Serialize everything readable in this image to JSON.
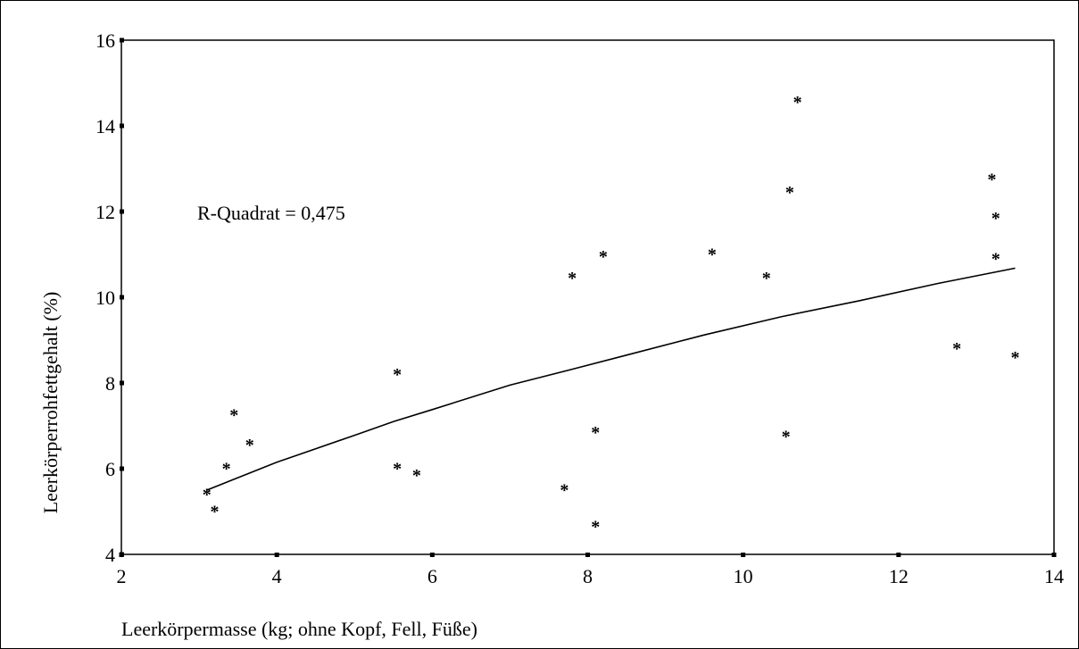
{
  "chart_data": {
    "type": "scatter",
    "xlabel": "Leerkörpermasse (kg; ohne Kopf, Fell, Füße)",
    "ylabel": "Leerkörperrohfettgehalt (%)",
    "xlim": [
      2,
      14
    ],
    "ylim": [
      4,
      16
    ],
    "xticks": [
      "2",
      "4",
      "6",
      "8",
      "10",
      "12",
      "14"
    ],
    "yticks": [
      "4",
      "6",
      "8",
      "10",
      "12",
      "14",
      "16"
    ],
    "annotation": "R-Quadrat = 0,475",
    "marker": "*",
    "grid": false,
    "points": [
      {
        "x": 3.1,
        "y": 5.45
      },
      {
        "x": 3.2,
        "y": 5.05
      },
      {
        "x": 3.35,
        "y": 6.05
      },
      {
        "x": 3.45,
        "y": 7.3
      },
      {
        "x": 3.65,
        "y": 6.6
      },
      {
        "x": 5.55,
        "y": 8.25
      },
      {
        "x": 5.55,
        "y": 6.05
      },
      {
        "x": 5.8,
        "y": 5.9
      },
      {
        "x": 7.7,
        "y": 5.55
      },
      {
        "x": 7.8,
        "y": 10.5
      },
      {
        "x": 8.1,
        "y": 6.9
      },
      {
        "x": 8.1,
        "y": 4.7
      },
      {
        "x": 8.2,
        "y": 11.0
      },
      {
        "x": 9.6,
        "y": 11.05
      },
      {
        "x": 10.3,
        "y": 10.5
      },
      {
        "x": 10.55,
        "y": 6.8
      },
      {
        "x": 10.6,
        "y": 12.5
      },
      {
        "x": 10.7,
        "y": 14.6
      },
      {
        "x": 12.75,
        "y": 8.85
      },
      {
        "x": 13.2,
        "y": 12.8
      },
      {
        "x": 13.25,
        "y": 11.9
      },
      {
        "x": 13.25,
        "y": 10.95
      },
      {
        "x": 13.5,
        "y": 8.65
      }
    ],
    "fit_line": {
      "x": [
        3.1,
        4,
        5,
        5.5,
        6,
        7,
        7.8,
        8.5,
        9.5,
        10.5,
        11.5,
        12.5,
        13.5
      ],
      "y": [
        5.5,
        6.15,
        6.78,
        7.1,
        7.38,
        7.95,
        8.32,
        8.65,
        9.12,
        9.55,
        9.92,
        10.32,
        10.68
      ]
    }
  }
}
